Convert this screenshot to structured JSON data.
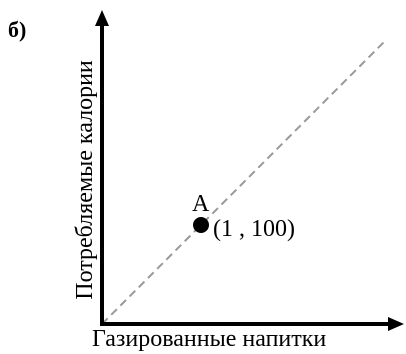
{
  "panel_label": "б)",
  "axes": {
    "x_label": "Газированные напитки",
    "y_label": "Потребляемые калории"
  },
  "point": {
    "letter": "A",
    "coords": "(1 , 100)"
  },
  "colors": {
    "axis": "#000000",
    "dashed_line": "#999999",
    "point": "#000000"
  }
}
